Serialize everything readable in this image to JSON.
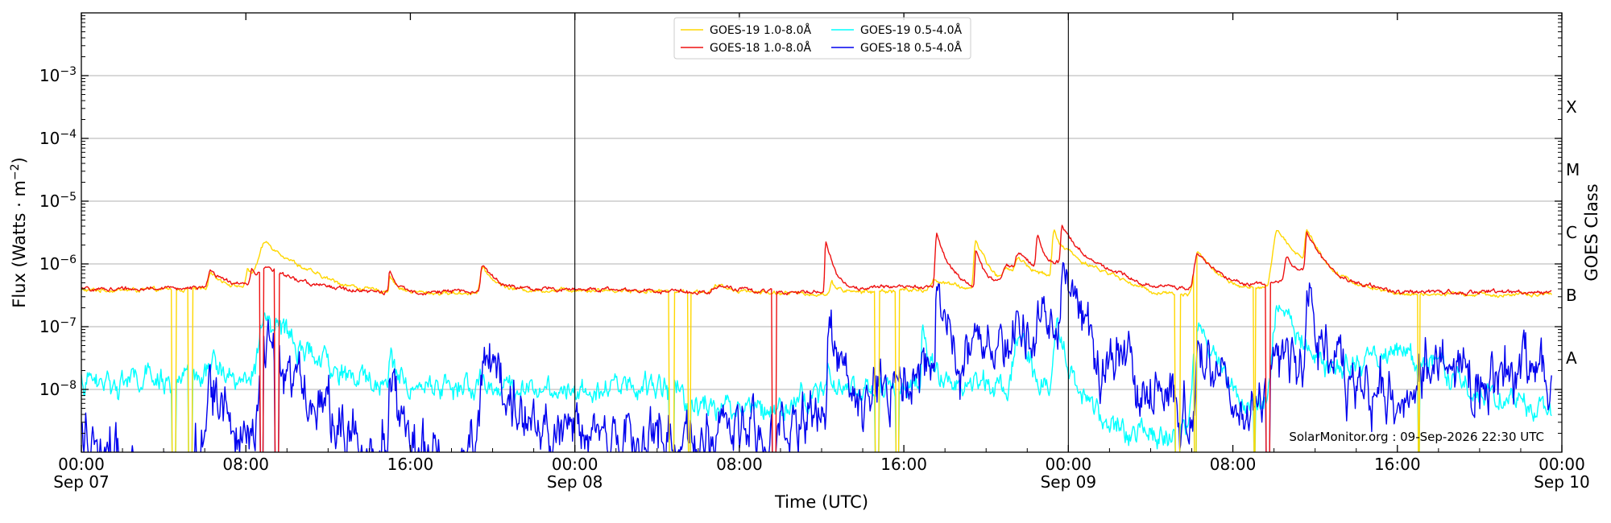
{
  "chart_data": {
    "type": "line",
    "xlabel": "Time (UTC)",
    "ylabel_main": "Flux (Watts · m",
    "ylabel_sup": "−2",
    "ylabel_close": ")",
    "right_axis_label": "GOES Class",
    "y_scale": "log",
    "ylim": [
      1e-09,
      0.01
    ],
    "xlim_hours": [
      0,
      72
    ],
    "y_ticks": [
      {
        "value": 1e-08,
        "base": "10",
        "exp": "−8"
      },
      {
        "value": 1e-07,
        "base": "10",
        "exp": "−7"
      },
      {
        "value": 1e-06,
        "base": "10",
        "exp": "−6"
      },
      {
        "value": 1e-05,
        "base": "10",
        "exp": "−5"
      },
      {
        "value": 0.0001,
        "base": "10",
        "exp": "−4"
      },
      {
        "value": 0.001,
        "base": "10",
        "exp": "−3"
      }
    ],
    "x_ticks": [
      {
        "hour": 0,
        "time": "00:00",
        "date": "Sep 07"
      },
      {
        "hour": 8,
        "time": "08:00",
        "date": ""
      },
      {
        "hour": 16,
        "time": "16:00",
        "date": ""
      },
      {
        "hour": 24,
        "time": "00:00",
        "date": "Sep 08"
      },
      {
        "hour": 32,
        "time": "08:00",
        "date": ""
      },
      {
        "hour": 40,
        "time": "16:00",
        "date": ""
      },
      {
        "hour": 48,
        "time": "00:00",
        "date": "Sep 09"
      },
      {
        "hour": 56,
        "time": "08:00",
        "date": ""
      },
      {
        "hour": 64,
        "time": "16:00",
        "date": ""
      },
      {
        "hour": 72,
        "time": "00:00",
        "date": "Sep 10"
      }
    ],
    "day_boundaries": [
      24,
      48
    ],
    "goes_classes": [
      {
        "label": "A",
        "value": 3.16e-08
      },
      {
        "label": "B",
        "value": 3.16e-07
      },
      {
        "label": "C",
        "value": 3.16e-06
      },
      {
        "label": "M",
        "value": 3.16e-05
      },
      {
        "label": "X",
        "value": 0.000316
      }
    ],
    "legend_placement": "top-center",
    "grid": "horizontal",
    "watermark": "SolarMonitor.org : 09-Sep-2026 22:30 UTC",
    "data_end_hour": 71.5,
    "series": [
      {
        "name": "GOES-19 1.0-8.0Å",
        "color": "#ffd700",
        "band": "long",
        "noise": 0.02,
        "baseline": [
          [
            0,
            3.8e-07
          ],
          [
            6,
            3.9e-07
          ],
          [
            9,
            4.2e-07
          ],
          [
            14,
            3.4e-07
          ],
          [
            18,
            3.4e-07
          ],
          [
            24,
            3.9e-07
          ],
          [
            30,
            3.6e-07
          ],
          [
            36,
            3.3e-07
          ],
          [
            40,
            3.8e-07
          ],
          [
            44,
            3.7e-07
          ],
          [
            47,
            4.8e-07
          ],
          [
            48,
            1.2e-06
          ],
          [
            50,
            7e-07
          ],
          [
            52,
            3.6e-07
          ],
          [
            56,
            2.9e-07
          ],
          [
            60,
            6e-07
          ],
          [
            64,
            3.3e-07
          ],
          [
            71.5,
            3.2e-07
          ]
        ],
        "flares": [
          [
            6.3,
            3.6e-07,
            0.15,
            0.6
          ],
          [
            8.1,
            4e-07,
            0.1,
            0.4
          ],
          [
            9.0,
            1.75e-06,
            0.4,
            1.4
          ],
          [
            15.0,
            3.2e-07,
            0.05,
            0.3
          ],
          [
            19.5,
            5e-07,
            0.12,
            0.6
          ],
          [
            31.0,
            9e-08,
            0.3,
            1.0
          ],
          [
            36.5,
            1.7e-07,
            0.1,
            0.4
          ],
          [
            41.5,
            2e-07,
            0.2,
            1.0
          ],
          [
            43.5,
            2e-06,
            0.1,
            0.5
          ],
          [
            45.0,
            4e-07,
            0.2,
            0.8
          ],
          [
            45.6,
            6e-07,
            0.2,
            0.9
          ],
          [
            47.3,
            2.6e-06,
            0.1,
            0.4
          ],
          [
            54.3,
            1.2e-06,
            0.2,
            0.9
          ],
          [
            58.2,
            3e-06,
            0.25,
            0.8
          ],
          [
            59.6,
            2.5e-06,
            0.1,
            0.5
          ]
        ],
        "dropouts": [
          [
            4.4,
            4.6
          ],
          [
            5.2,
            5.4
          ],
          [
            28.6,
            28.85
          ],
          [
            29.5,
            29.65
          ],
          [
            38.6,
            38.8
          ],
          [
            39.6,
            39.75
          ],
          [
            53.2,
            53.45
          ],
          [
            54.1,
            54.25
          ],
          [
            57.0,
            57.1
          ],
          [
            65.0,
            65.1
          ]
        ]
      },
      {
        "name": "GOES-18 1.0-8.0Å",
        "color": "#ee1111",
        "band": "long",
        "noise": 0.02,
        "baseline": [
          [
            0,
            3.9e-07
          ],
          [
            6,
            4.2e-07
          ],
          [
            9,
            4.5e-07
          ],
          [
            14,
            3.5e-07
          ],
          [
            18,
            3.6e-07
          ],
          [
            24,
            4e-07
          ],
          [
            30,
            3.6e-07
          ],
          [
            36,
            3.6e-07
          ],
          [
            40,
            4.5e-07
          ],
          [
            44,
            4.5e-07
          ],
          [
            47,
            6e-07
          ],
          [
            48,
            1.3e-06
          ],
          [
            50,
            8e-07
          ],
          [
            52,
            4.5e-07
          ],
          [
            56,
            3.6e-07
          ],
          [
            60,
            7e-07
          ],
          [
            64,
            3.5e-07
          ],
          [
            71.5,
            3.6e-07
          ]
        ],
        "flares": [
          [
            6.3,
            3.2e-07,
            0.15,
            0.7
          ],
          [
            8.3,
            4e-07,
            0.1,
            0.4
          ],
          [
            9.0,
            4e-07,
            0.3,
            1.4
          ],
          [
            15.0,
            4e-07,
            0.05,
            0.3
          ],
          [
            19.5,
            6e-07,
            0.1,
            0.6
          ],
          [
            31.0,
            9e-08,
            0.3,
            1.0
          ],
          [
            36.2,
            2e-06,
            0.05,
            0.3
          ],
          [
            41.6,
            2.4e-06,
            0.08,
            0.4
          ],
          [
            43.5,
            1.3e-06,
            0.05,
            0.3
          ],
          [
            45.0,
            5e-07,
            0.2,
            0.8
          ],
          [
            45.6,
            7e-07,
            0.2,
            0.9
          ],
          [
            46.5,
            2e-06,
            0.08,
            0.3
          ],
          [
            47.7,
            2.9e-06,
            0.08,
            0.5
          ],
          [
            54.3,
            1.1e-06,
            0.2,
            0.9
          ],
          [
            58.6,
            7e-07,
            0.1,
            0.5
          ],
          [
            59.6,
            2.4e-06,
            0.08,
            0.5
          ]
        ],
        "dropouts": [
          [
            8.7,
            8.85
          ],
          [
            9.4,
            9.6
          ],
          [
            33.6,
            33.8
          ],
          [
            57.6,
            57.8
          ]
        ]
      },
      {
        "name": "GOES-19 0.5-4.0Å",
        "color": "#00ffff",
        "band": "short",
        "noise": 0.12,
        "baseline": [
          [
            0,
            1.3e-08
          ],
          [
            4,
            1.4e-08
          ],
          [
            6,
            1.5e-08
          ],
          [
            12,
            1.2e-08
          ],
          [
            18,
            1.1e-08
          ],
          [
            24,
            1.1e-08
          ],
          [
            28,
            1.1e-08
          ],
          [
            30,
            6e-09
          ],
          [
            33,
            5e-09
          ],
          [
            36,
            8e-09
          ],
          [
            40,
            1.2e-08
          ],
          [
            44,
            1.2e-08
          ],
          [
            48,
            3e-09
          ],
          [
            52,
            2e-09
          ],
          [
            56,
            2e-09
          ],
          [
            62,
            2.5e-08
          ],
          [
            64,
            4e-08
          ],
          [
            66,
            2e-08
          ],
          [
            68,
            1e-08
          ],
          [
            71.5,
            4e-09
          ]
        ],
        "flares": [
          [
            6.3,
            1.2e-08,
            0.2,
            0.8
          ],
          [
            9.0,
            1.3e-07,
            0.3,
            1.2
          ],
          [
            15.0,
            2.2e-08,
            0.05,
            0.3
          ],
          [
            28.7,
            2.5e-08,
            0.05,
            0.2
          ],
          [
            36.3,
            1.5e-08,
            0.05,
            0.3
          ],
          [
            40.9,
            6e-08,
            0.05,
            0.3
          ],
          [
            45.5,
            7e-08,
            0.2,
            0.6
          ],
          [
            47.5,
            8e-08,
            0.2,
            0.5
          ],
          [
            54.3,
            9e-08,
            0.2,
            0.8
          ],
          [
            58.2,
            2.2e-07,
            0.2,
            0.8
          ]
        ],
        "dropouts": [
          [
            4.4,
            4.6
          ],
          [
            5.2,
            5.4
          ],
          [
            28.6,
            28.85
          ],
          [
            29.5,
            29.65
          ],
          [
            38.6,
            38.8
          ],
          [
            39.6,
            39.75
          ],
          [
            53.2,
            53.45
          ],
          [
            54.1,
            54.25
          ],
          [
            57.0,
            57.1
          ],
          [
            65.0,
            65.1
          ]
        ]
      },
      {
        "name": "GOES-18 0.5-4.0Å",
        "color": "#0000ee",
        "band": "short",
        "noise": 0.28,
        "baseline": [
          [
            0,
            2e-09
          ],
          [
            3,
            8e-10
          ],
          [
            9,
            1.5e-09
          ],
          [
            12,
            2.5e-09
          ],
          [
            14,
            1e-09
          ],
          [
            18,
            1e-09
          ],
          [
            20,
            2e-09
          ],
          [
            24,
            2e-09
          ],
          [
            30,
            1.5e-09
          ],
          [
            36,
            3e-09
          ],
          [
            39,
            9e-09
          ],
          [
            42,
            1.5e-08
          ],
          [
            44,
            4e-08
          ],
          [
            46,
            5.5e-08
          ],
          [
            48,
            4e-08
          ],
          [
            50,
            2e-08
          ],
          [
            52,
            1.2e-08
          ],
          [
            54,
            4e-09
          ],
          [
            56,
            2e-09
          ],
          [
            58,
            2e-08
          ],
          [
            60,
            1e-08
          ],
          [
            62,
            6e-09
          ],
          [
            64,
            1.2e-08
          ],
          [
            66,
            2e-08
          ],
          [
            68,
            1.3e-08
          ],
          [
            71.5,
            2e-08
          ]
        ],
        "flares": [
          [
            6.2,
            1.1e-08,
            0.2,
            0.6
          ],
          [
            9.0,
            5e-08,
            0.3,
            1.0
          ],
          [
            15.0,
            2.6e-08,
            0.05,
            0.3
          ],
          [
            19.6,
            4.5e-08,
            0.1,
            0.6
          ],
          [
            36.3,
            8e-08,
            0.05,
            0.3
          ],
          [
            41.6,
            2.6e-07,
            0.05,
            0.3
          ],
          [
            45.5,
            6e-08,
            0.1,
            0.4
          ],
          [
            46.6,
            1.5e-07,
            0.05,
            0.3
          ],
          [
            47.7,
            3.2e-07,
            0.08,
            0.5
          ],
          [
            54.3,
            9e-08,
            0.1,
            0.6
          ],
          [
            58.6,
            3e-08,
            0.1,
            0.5
          ],
          [
            59.6,
            2.8e-07,
            0.08,
            0.4
          ]
        ],
        "dropouts": [
          [
            8.7,
            8.85
          ],
          [
            9.4,
            9.6
          ],
          [
            33.6,
            33.8
          ],
          [
            57.6,
            57.8
          ]
        ]
      }
    ]
  }
}
